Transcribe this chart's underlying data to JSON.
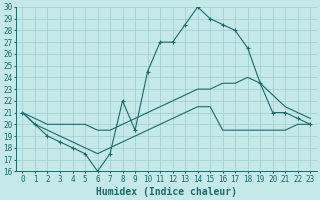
{
  "xlabel": "Humidex (Indice chaleur)",
  "xlim_min": -0.5,
  "xlim_max": 23.5,
  "ylim_min": 16,
  "ylim_max": 30,
  "xticks": [
    0,
    1,
    2,
    3,
    4,
    5,
    6,
    7,
    8,
    9,
    10,
    11,
    12,
    13,
    14,
    15,
    16,
    17,
    18,
    19,
    20,
    21,
    22,
    23
  ],
  "yticks": [
    16,
    17,
    18,
    19,
    20,
    21,
    22,
    23,
    24,
    25,
    26,
    27,
    28,
    29,
    30
  ],
  "bg_color": "#c5e8e8",
  "grid_color": "#9ecece",
  "line_color": "#1a6b6b",
  "line1_x": [
    0,
    1,
    2,
    3,
    4,
    5,
    6,
    7,
    8,
    9,
    10,
    11,
    12,
    13,
    14,
    15,
    16,
    17,
    18,
    19,
    20,
    21,
    22,
    23
  ],
  "line1_y": [
    21,
    20,
    19,
    18.5,
    18,
    17.5,
    16,
    17.5,
    22,
    19.5,
    24.5,
    27,
    27,
    28.5,
    30,
    29,
    28.5,
    28,
    26.5,
    23.5,
    21,
    21,
    20.5,
    20
  ],
  "line2_x": [
    0,
    1,
    2,
    3,
    4,
    5,
    6,
    7,
    8,
    9,
    10,
    11,
    12,
    13,
    14,
    15,
    16,
    17,
    18,
    19,
    20,
    21,
    22,
    23
  ],
  "line2_y": [
    21,
    20.5,
    20,
    20,
    20,
    20,
    19.5,
    19.5,
    20,
    20.5,
    21,
    21.5,
    22,
    22.5,
    23,
    23,
    23.5,
    23.5,
    24,
    23.5,
    22.5,
    21.5,
    21,
    20.5
  ],
  "line3_x": [
    0,
    1,
    2,
    3,
    4,
    5,
    6,
    7,
    8,
    9,
    10,
    11,
    12,
    13,
    14,
    15,
    16,
    17,
    18,
    19,
    20,
    21,
    22,
    23
  ],
  "line3_y": [
    21,
    20,
    19.5,
    19,
    18.5,
    18,
    17.5,
    18,
    18.5,
    19,
    19.5,
    20,
    20.5,
    21,
    21.5,
    21.5,
    19.5,
    19.5,
    19.5,
    19.5,
    19.5,
    19.5,
    20,
    20
  ],
  "xlabel_fontsize": 7,
  "tick_fontsize": 5.5
}
